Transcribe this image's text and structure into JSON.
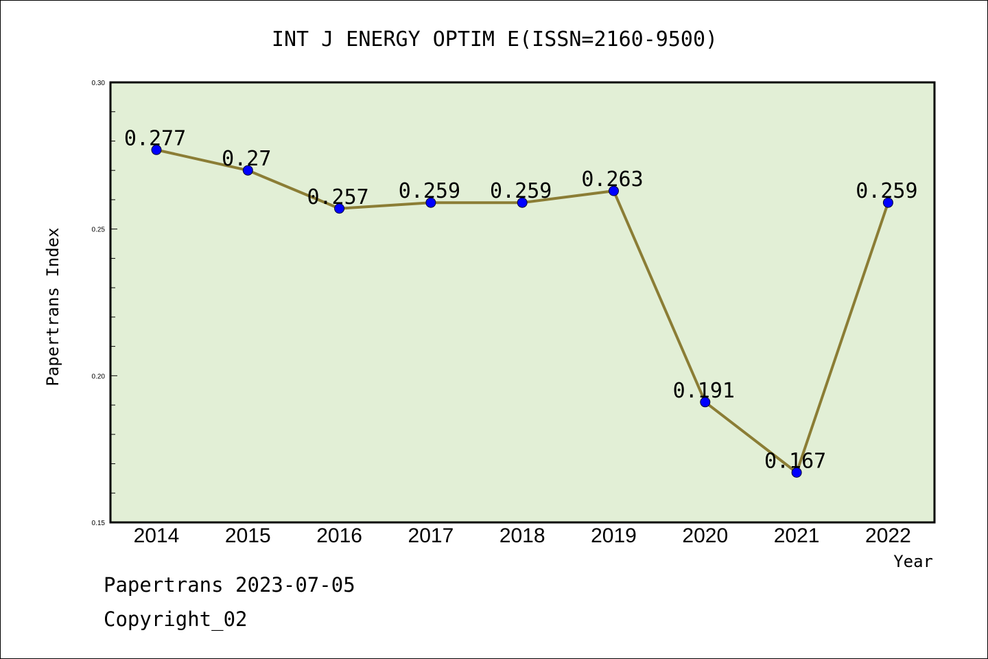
{
  "colors": {
    "plot_background": "#e2efd6",
    "line": "#8b7d35",
    "marker": "#0000ff",
    "axis": "#000000"
  },
  "chart_data": {
    "type": "line",
    "title": "INT J ENERGY OPTIM E(ISSN=2160-9500)",
    "xlabel": "Year",
    "ylabel": "Papertrans Index",
    "categories": [
      "2014",
      "2015",
      "2016",
      "2017",
      "2018",
      "2019",
      "2020",
      "2021",
      "2022"
    ],
    "series": [
      {
        "values": [
          0.277,
          0.27,
          0.257,
          0.259,
          0.259,
          0.263,
          0.191,
          0.167,
          0.259
        ],
        "data_labels": [
          "0.277",
          "0.27",
          "0.257",
          "0.259",
          "0.259",
          "0.263",
          "0.191",
          "0.167",
          "0.259"
        ]
      }
    ],
    "ylim": [
      0.15,
      0.3
    ],
    "yticks": [
      "0.15",
      "0.20",
      "0.25",
      "0.30"
    ],
    "minor_tick_step": 0.01,
    "grid": false,
    "legend": "none"
  },
  "footer": {
    "line1": "Papertrans 2023-07-05",
    "line2": "Copyright_02"
  }
}
